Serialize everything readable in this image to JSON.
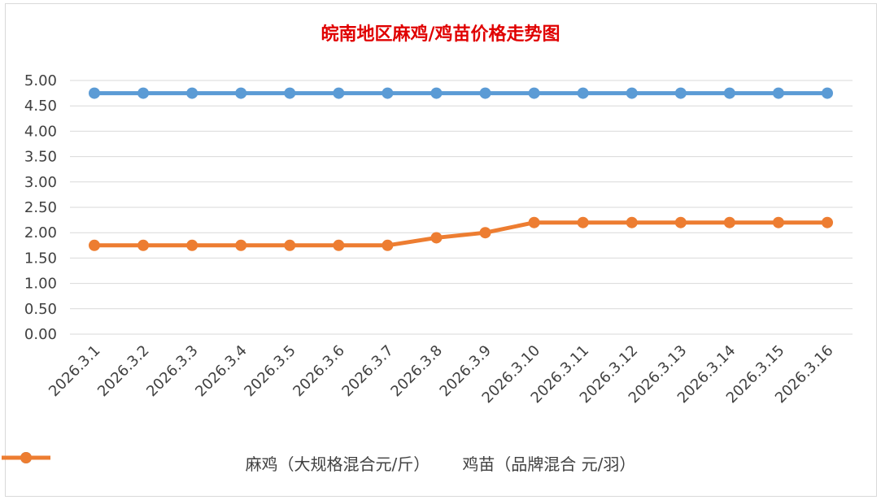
{
  "chart_data": {
    "type": "line",
    "title": "皖南地区麻鸡/鸡苗价格走势图",
    "categories": [
      "2026.3.1",
      "2026.3.2",
      "2026.3.3",
      "2026.3.4",
      "2026.3.5",
      "2026.3.6",
      "2026.3.7",
      "2026.3.8",
      "2026.3.9",
      "2026.3.10",
      "2026.3.11",
      "2026.3.12",
      "2026.3.13",
      "2026.3.14",
      "2026.3.15",
      "2026.3.16"
    ],
    "yticks": [
      "0.00",
      "0.50",
      "1.00",
      "1.50",
      "2.00",
      "2.50",
      "3.00",
      "3.50",
      "4.00",
      "4.50",
      "5.00"
    ],
    "ylim": [
      0,
      5
    ],
    "grid": true,
    "legend_position": "bottom",
    "series": [
      {
        "name": "麻鸡（大规格混合元/斤）",
        "color": "#5b9bd5",
        "values": [
          4.75,
          4.75,
          4.75,
          4.75,
          4.75,
          4.75,
          4.75,
          4.75,
          4.75,
          4.75,
          4.75,
          4.75,
          4.75,
          4.75,
          4.75,
          4.75
        ]
      },
      {
        "name": "鸡苗（品牌混合 元/羽）",
        "color": "#ed7d31",
        "values": [
          1.75,
          1.75,
          1.75,
          1.75,
          1.75,
          1.75,
          1.75,
          1.9,
          2.0,
          2.2,
          2.2,
          2.2,
          2.2,
          2.2,
          2.2,
          2.2
        ]
      }
    ]
  }
}
